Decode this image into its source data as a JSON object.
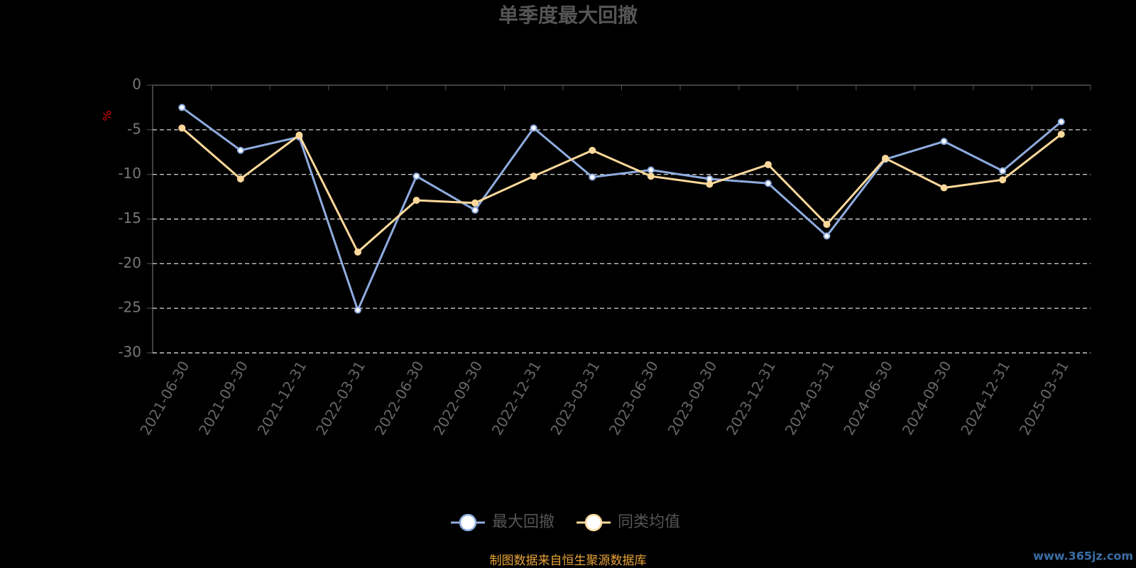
{
  "chart_data": {
    "type": "line",
    "title": "单季度最大回撤",
    "y_label": "%",
    "categories": [
      "2021-06-30",
      "2021-09-30",
      "2021-12-31",
      "2022-03-31",
      "2022-06-30",
      "2022-09-30",
      "2022-12-31",
      "2023-03-31",
      "2023-06-30",
      "2023-09-30",
      "2023-12-31",
      "2024-03-31",
      "2024-06-30",
      "2024-09-30",
      "2024-12-31",
      "2025-03-31"
    ],
    "series": [
      {
        "name": "最大回撤",
        "color": "#8eacdf",
        "values": [
          -2.5,
          -7.3,
          -5.8,
          -25.2,
          -10.2,
          -14.0,
          -4.8,
          -10.3,
          -9.5,
          -10.5,
          -11.0,
          -16.9,
          -8.3,
          -6.3,
          -9.6,
          -4.1
        ]
      },
      {
        "name": "同类均值",
        "color": "#fcd89a",
        "values": [
          -4.8,
          -10.5,
          -5.6,
          -18.7,
          -12.9,
          -13.2,
          -10.2,
          -7.3,
          -10.2,
          -11.1,
          -8.9,
          -15.6,
          -8.2,
          -11.5,
          -10.6,
          -5.5
        ]
      }
    ],
    "ylim": [
      -30,
      0
    ],
    "yticks": [
      0,
      -5,
      -10,
      -15,
      -20,
      -25,
      -30
    ],
    "grid": true,
    "source": "制图数据来自恒生聚源数据库",
    "watermark": "www.365jz.com"
  }
}
